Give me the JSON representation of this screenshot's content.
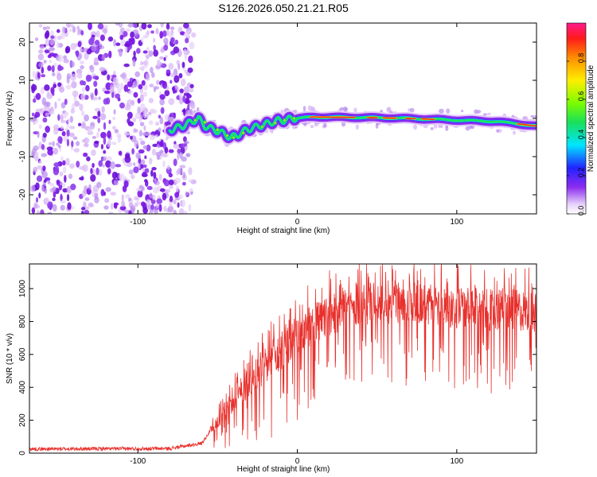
{
  "title": "S126.2026.050.21.21.R05",
  "chart_data": [
    {
      "type": "heatmap",
      "description_key": "spectrogram",
      "xlabel": "Height of straight line (km)",
      "ylabel": "Frequency (Hz)",
      "xlim": [
        -168,
        150
      ],
      "ylim": [
        -25,
        25
      ],
      "xticks": [
        -100,
        0,
        100
      ],
      "xtick_labels": [
        "-100",
        "0",
        "100"
      ],
      "yticks": [
        -20,
        -10,
        0,
        10,
        20
      ],
      "ytick_labels": [
        "-20",
        "-10",
        "0",
        "10",
        "20"
      ],
      "noise_region_x": [
        -168,
        -67
      ],
      "ridge": {
        "x": [
          -80,
          -72,
          -67,
          -62,
          -58,
          -52,
          -46,
          -42,
          -38,
          -32,
          -28,
          -24,
          -20,
          -16,
          -12,
          -8,
          -4,
          0,
          10,
          30,
          50,
          70,
          90,
          110,
          125,
          140,
          150
        ],
        "y": [
          -3,
          -2,
          -1,
          0,
          -2,
          -3,
          -4,
          -5,
          -4.5,
          -3,
          -2.5,
          -2,
          -1.5,
          -1,
          -0.5,
          -0.5,
          0,
          0,
          0.4,
          0.3,
          0.2,
          0,
          -0.3,
          -0.6,
          -0.8,
          -1.5,
          -2
        ]
      },
      "colorbar": {
        "label": "Normalized spectral amplitude",
        "range": [
          0,
          1
        ],
        "ticks": [
          0.0,
          0.2,
          0.4,
          0.6,
          0.8
        ],
        "tick_labels": [
          "0.0",
          "0.2",
          "0.4",
          "0.6",
          "0.8"
        ]
      }
    },
    {
      "type": "line",
      "description_key": "snr",
      "xlabel": "Height of straight line (km)",
      "ylabel": "SNR (10 * v/v)",
      "xlim": [
        -168,
        150
      ],
      "ylim": [
        0,
        1150
      ],
      "xticks": [
        -100,
        0,
        100
      ],
      "xtick_labels": [
        "-100",
        "0",
        "100"
      ],
      "yticks": [
        0,
        200,
        400,
        600,
        800,
        1000
      ],
      "ytick_labels": [
        "0",
        "200",
        "400",
        "600",
        "800",
        "1000"
      ],
      "color": "#e8302c",
      "envelope": {
        "x": [
          -168,
          -80,
          -60,
          -50,
          -40,
          -30,
          -20,
          -10,
          0,
          10,
          20,
          30,
          40,
          60,
          80,
          100,
          120,
          140,
          150
        ],
        "y": [
          25,
          28,
          60,
          200,
          330,
          450,
          530,
          630,
          720,
          790,
          850,
          900,
          920,
          930,
          920,
          900,
          880,
          880,
          870
        ]
      }
    }
  ],
  "colors": {
    "axes": "#000000",
    "line": "#e8302c",
    "noise_dark": "#7b16e6",
    "noise_light": "#d9b8f5"
  }
}
